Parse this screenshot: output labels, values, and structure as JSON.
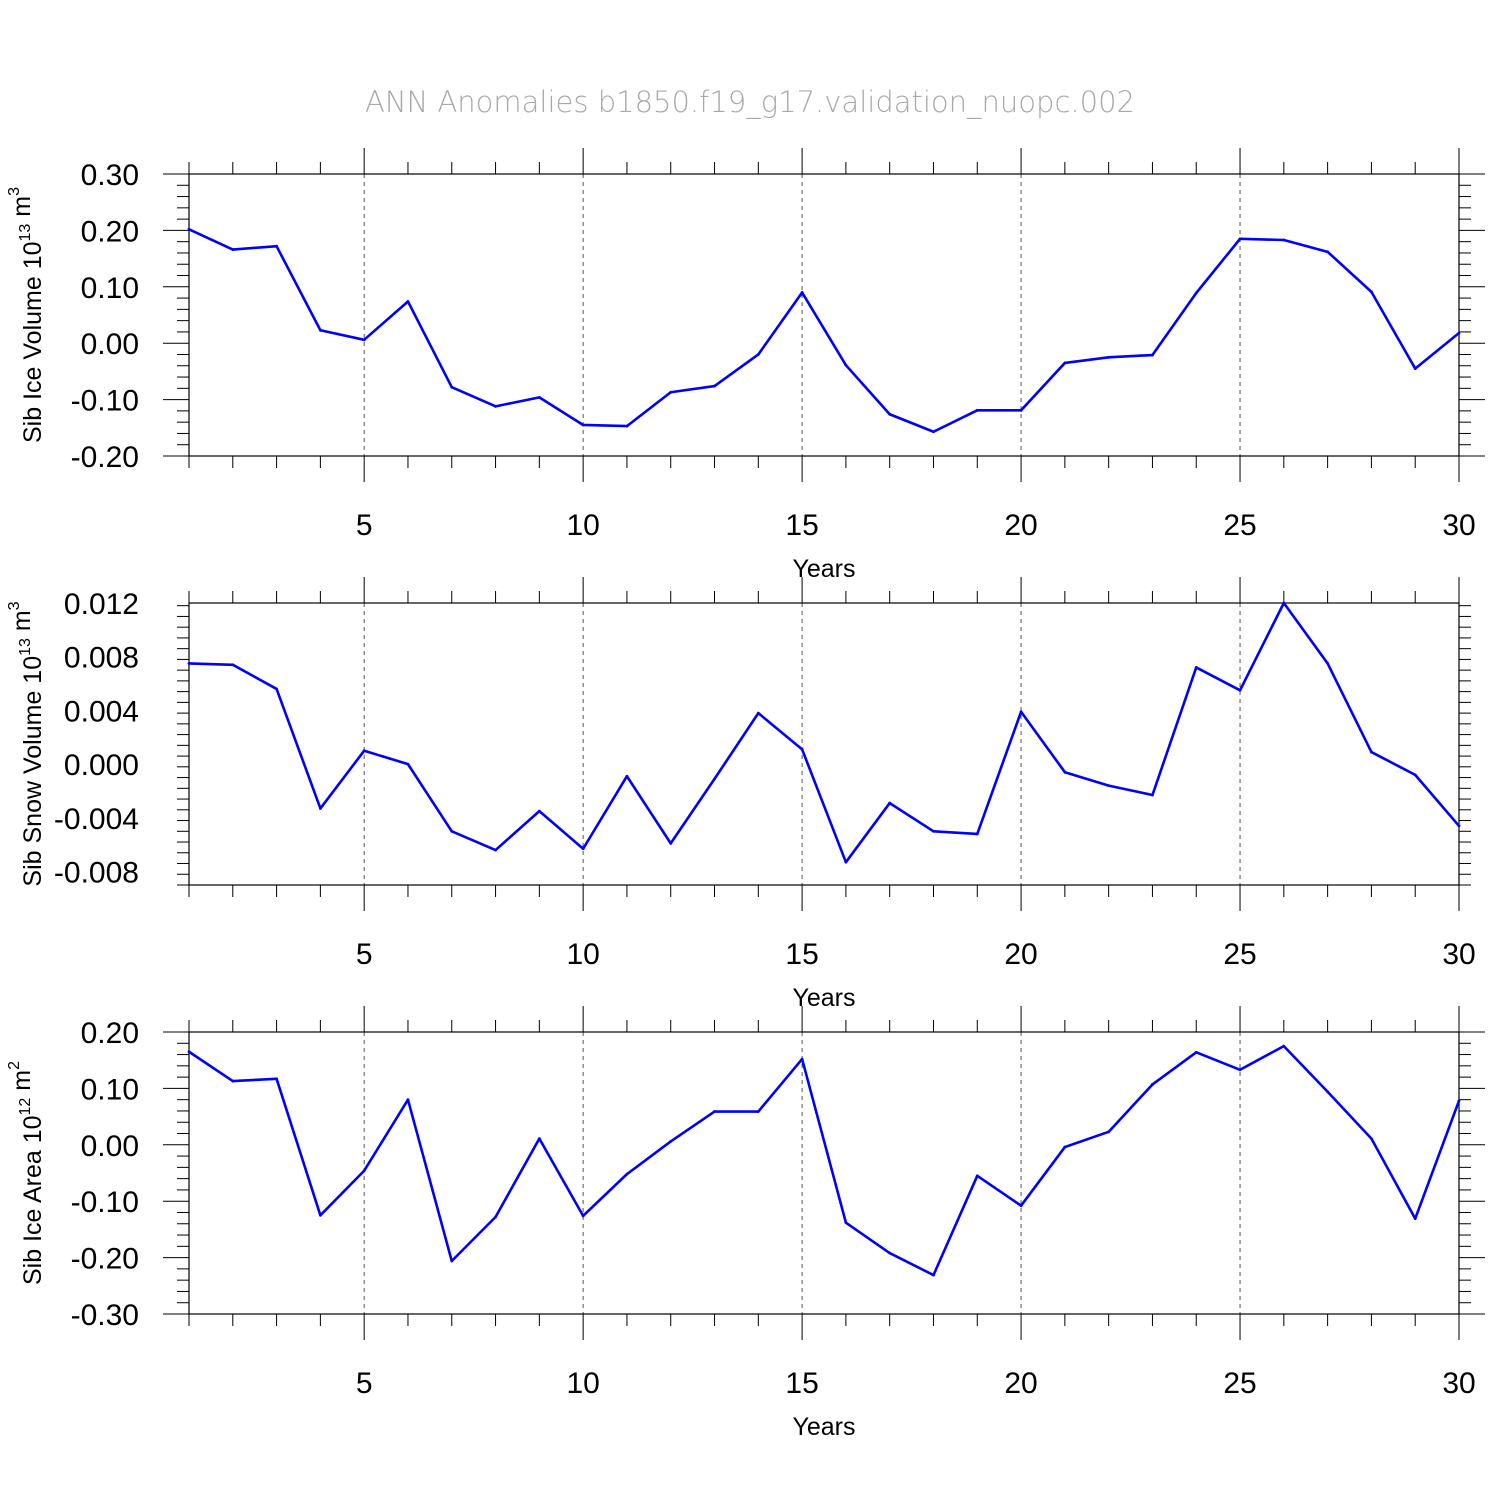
{
  "figure": {
    "title": "ANN Anomalies b1850.f19_g17.validation_nuopc.002"
  },
  "colors": {
    "line": "#0000ff",
    "axis": "#000000",
    "grid": "#555555",
    "title": "#a8a8a8"
  },
  "chart_data": [
    {
      "type": "line",
      "title": "",
      "xlabel": "Years",
      "ylabel": {
        "main": "Sib Ice Volume 10",
        "exp": "13",
        "unit": " m",
        "unit_exp": "3"
      },
      "xlim": [
        1,
        30
      ],
      "ylim": [
        -0.2,
        0.3
      ],
      "xticks": [
        5,
        10,
        15,
        20,
        25,
        30
      ],
      "yticks": [
        -0.2,
        -0.1,
        0.0,
        0.1,
        0.2,
        0.3
      ],
      "ytick_labels": [
        "-0.20",
        "-0.10",
        "0.00",
        "0.10",
        "0.20",
        "0.30"
      ],
      "grid": "dashed vertical at major x ticks",
      "x": [
        1,
        2,
        3,
        4,
        5,
        6,
        7,
        8,
        9,
        10,
        11,
        12,
        13,
        14,
        15,
        16,
        17,
        18,
        19,
        20,
        21,
        22,
        23,
        24,
        25,
        26,
        27,
        28,
        29,
        30
      ],
      "series": [
        {
          "values": [
            0.202,
            0.166,
            0.172,
            0.023,
            0.006,
            0.074,
            -0.078,
            -0.112,
            -0.096,
            -0.145,
            -0.147,
            -0.087,
            -0.076,
            -0.02,
            0.09,
            -0.039,
            -0.126,
            -0.157,
            -0.119,
            -0.119,
            -0.035,
            -0.025,
            -0.021,
            0.089,
            0.185,
            0.183,
            0.162,
            0.091,
            -0.045,
            0.018
          ]
        }
      ]
    },
    {
      "type": "line",
      "title": "",
      "xlabel": "Years",
      "ylabel": {
        "main": "Sib Snow Volume 10",
        "exp": "13",
        "unit": " m",
        "unit_exp": "3"
      },
      "xlim": [
        1,
        30
      ],
      "ylim": [
        -0.009,
        0.012
      ],
      "xticks": [
        5,
        10,
        15,
        20,
        25,
        30
      ],
      "yticks": [
        -0.008,
        -0.004,
        0.0,
        0.004,
        0.008,
        0.012
      ],
      "ytick_labels": [
        "-0.008",
        "-0.004",
        "0.000",
        "0.004",
        "0.008",
        "0.012"
      ],
      "grid": "dashed vertical at major x ticks",
      "x": [
        1,
        2,
        3,
        4,
        5,
        6,
        7,
        8,
        9,
        10,
        11,
        12,
        13,
        14,
        15,
        16,
        17,
        18,
        19,
        20,
        21,
        22,
        23,
        24,
        25,
        26,
        27,
        28,
        29,
        30
      ],
      "series": [
        {
          "values": [
            0.0075,
            0.0074,
            0.0056,
            -0.0033,
            0.001,
            0.0,
            -0.005,
            -0.0064,
            -0.0035,
            -0.0063,
            -0.0009,
            -0.0059,
            -0.0011,
            0.0038,
            0.0011,
            -0.0073,
            -0.0029,
            -0.005,
            -0.0052,
            0.0039,
            -0.0006,
            -0.0016,
            -0.0023,
            0.0072,
            0.0055,
            0.012,
            0.0075,
            0.0009,
            -0.0008,
            -0.0046
          ]
        }
      ]
    },
    {
      "type": "line",
      "title": "",
      "xlabel": "Years",
      "ylabel": {
        "main": "Sib Ice Area 10",
        "exp": "12",
        "unit": " m",
        "unit_exp": "2"
      },
      "xlim": [
        1,
        30
      ],
      "ylim": [
        -0.3,
        0.2
      ],
      "xticks": [
        5,
        10,
        15,
        20,
        25,
        30
      ],
      "yticks": [
        -0.3,
        -0.2,
        -0.1,
        0.0,
        0.1,
        0.2
      ],
      "ytick_labels": [
        "-0.30",
        "-0.20",
        "-0.10",
        "0.00",
        "0.10",
        "0.20"
      ],
      "grid": "dashed vertical at major x ticks",
      "x": [
        1,
        2,
        3,
        4,
        5,
        6,
        7,
        8,
        9,
        10,
        11,
        12,
        13,
        14,
        15,
        16,
        17,
        18,
        19,
        20,
        21,
        22,
        23,
        24,
        25,
        26,
        27,
        28,
        29,
        30
      ],
      "series": [
        {
          "values": [
            0.165,
            0.113,
            0.117,
            -0.125,
            -0.046,
            0.08,
            -0.206,
            -0.128,
            0.011,
            -0.126,
            -0.052,
            0.006,
            0.059,
            0.059,
            0.152,
            -0.138,
            -0.192,
            -0.231,
            -0.055,
            -0.108,
            -0.004,
            0.023,
            0.107,
            0.164,
            0.133,
            0.175,
            0.094,
            0.011,
            -0.131,
            0.078
          ]
        }
      ]
    }
  ]
}
